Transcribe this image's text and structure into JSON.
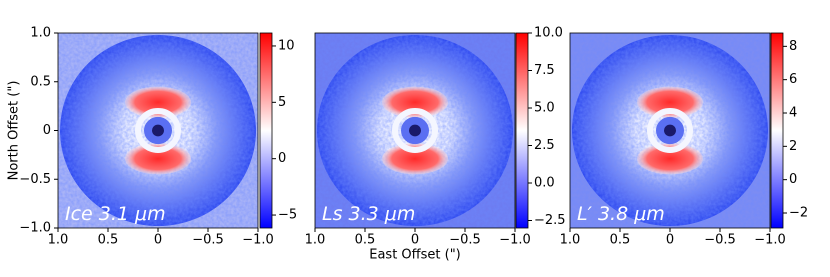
{
  "chart_data": [
    {
      "type": "image",
      "label": "Ice 3.1 μm",
      "ylabel": "North Offset (\")",
      "xlim": [
        1.0,
        -1.0
      ],
      "ylim": [
        -1.0,
        1.0
      ],
      "xticks": [
        {
          "value": 1.0,
          "label": "1.0"
        },
        0.5,
        0,
        {
          "value": -0.5,
          "label": "−0.5"
        },
        {
          "value": -1.0,
          "label": "−1.0"
        }
      ],
      "yticks": [
        {
          "value": 1.0,
          "label": "1.0"
        },
        0.5,
        0,
        {
          "value": -0.5,
          "label": "−0.5"
        },
        {
          "value": -1.0,
          "label": "−1.0"
        }
      ],
      "colorbar": {
        "lim": [
          -6.15,
          11.15
        ],
        "ticks": [
          {
            "value": -5,
            "label": "−5"
          },
          0,
          5,
          10
        ]
      }
    },
    {
      "type": "image",
      "label": "Ls 3.3 μm",
      "xlabel": "East Offset (\")",
      "xlim": [
        1.0,
        -1.0
      ],
      "ylim": [
        -1.0,
        1.0
      ],
      "xticks": [
        {
          "value": 1.0,
          "label": "1.0"
        },
        0.5,
        0,
        {
          "value": -0.5,
          "label": "−0.5"
        },
        {
          "value": -1.0,
          "label": "−1.0"
        }
      ],
      "colorbar": {
        "lim": [
          -3.0,
          10.0
        ],
        "ticks": [
          {
            "value": -2.5,
            "label": "−2.5"
          },
          {
            "value": 0,
            "label": "0.0"
          },
          2.5,
          {
            "value": 5,
            "label": "5.0"
          },
          7.5,
          {
            "value": 10,
            "label": "10.0"
          }
        ]
      }
    },
    {
      "type": "image",
      "label": "L′ 3.8 μm",
      "xlim": [
        1.0,
        -1.0
      ],
      "ylim": [
        -1.0,
        1.0
      ],
      "xticks": [
        {
          "value": 1.0,
          "label": "1.0"
        },
        0.5,
        0,
        {
          "value": -0.5,
          "label": "−0.5"
        },
        {
          "value": -1.0,
          "label": "−1.0"
        }
      ],
      "colorbar": {
        "lim": [
          -2.9,
          8.8
        ],
        "ticks": [
          {
            "value": -2,
            "label": "−2"
          },
          0,
          2,
          4,
          6,
          8
        ]
      }
    }
  ]
}
